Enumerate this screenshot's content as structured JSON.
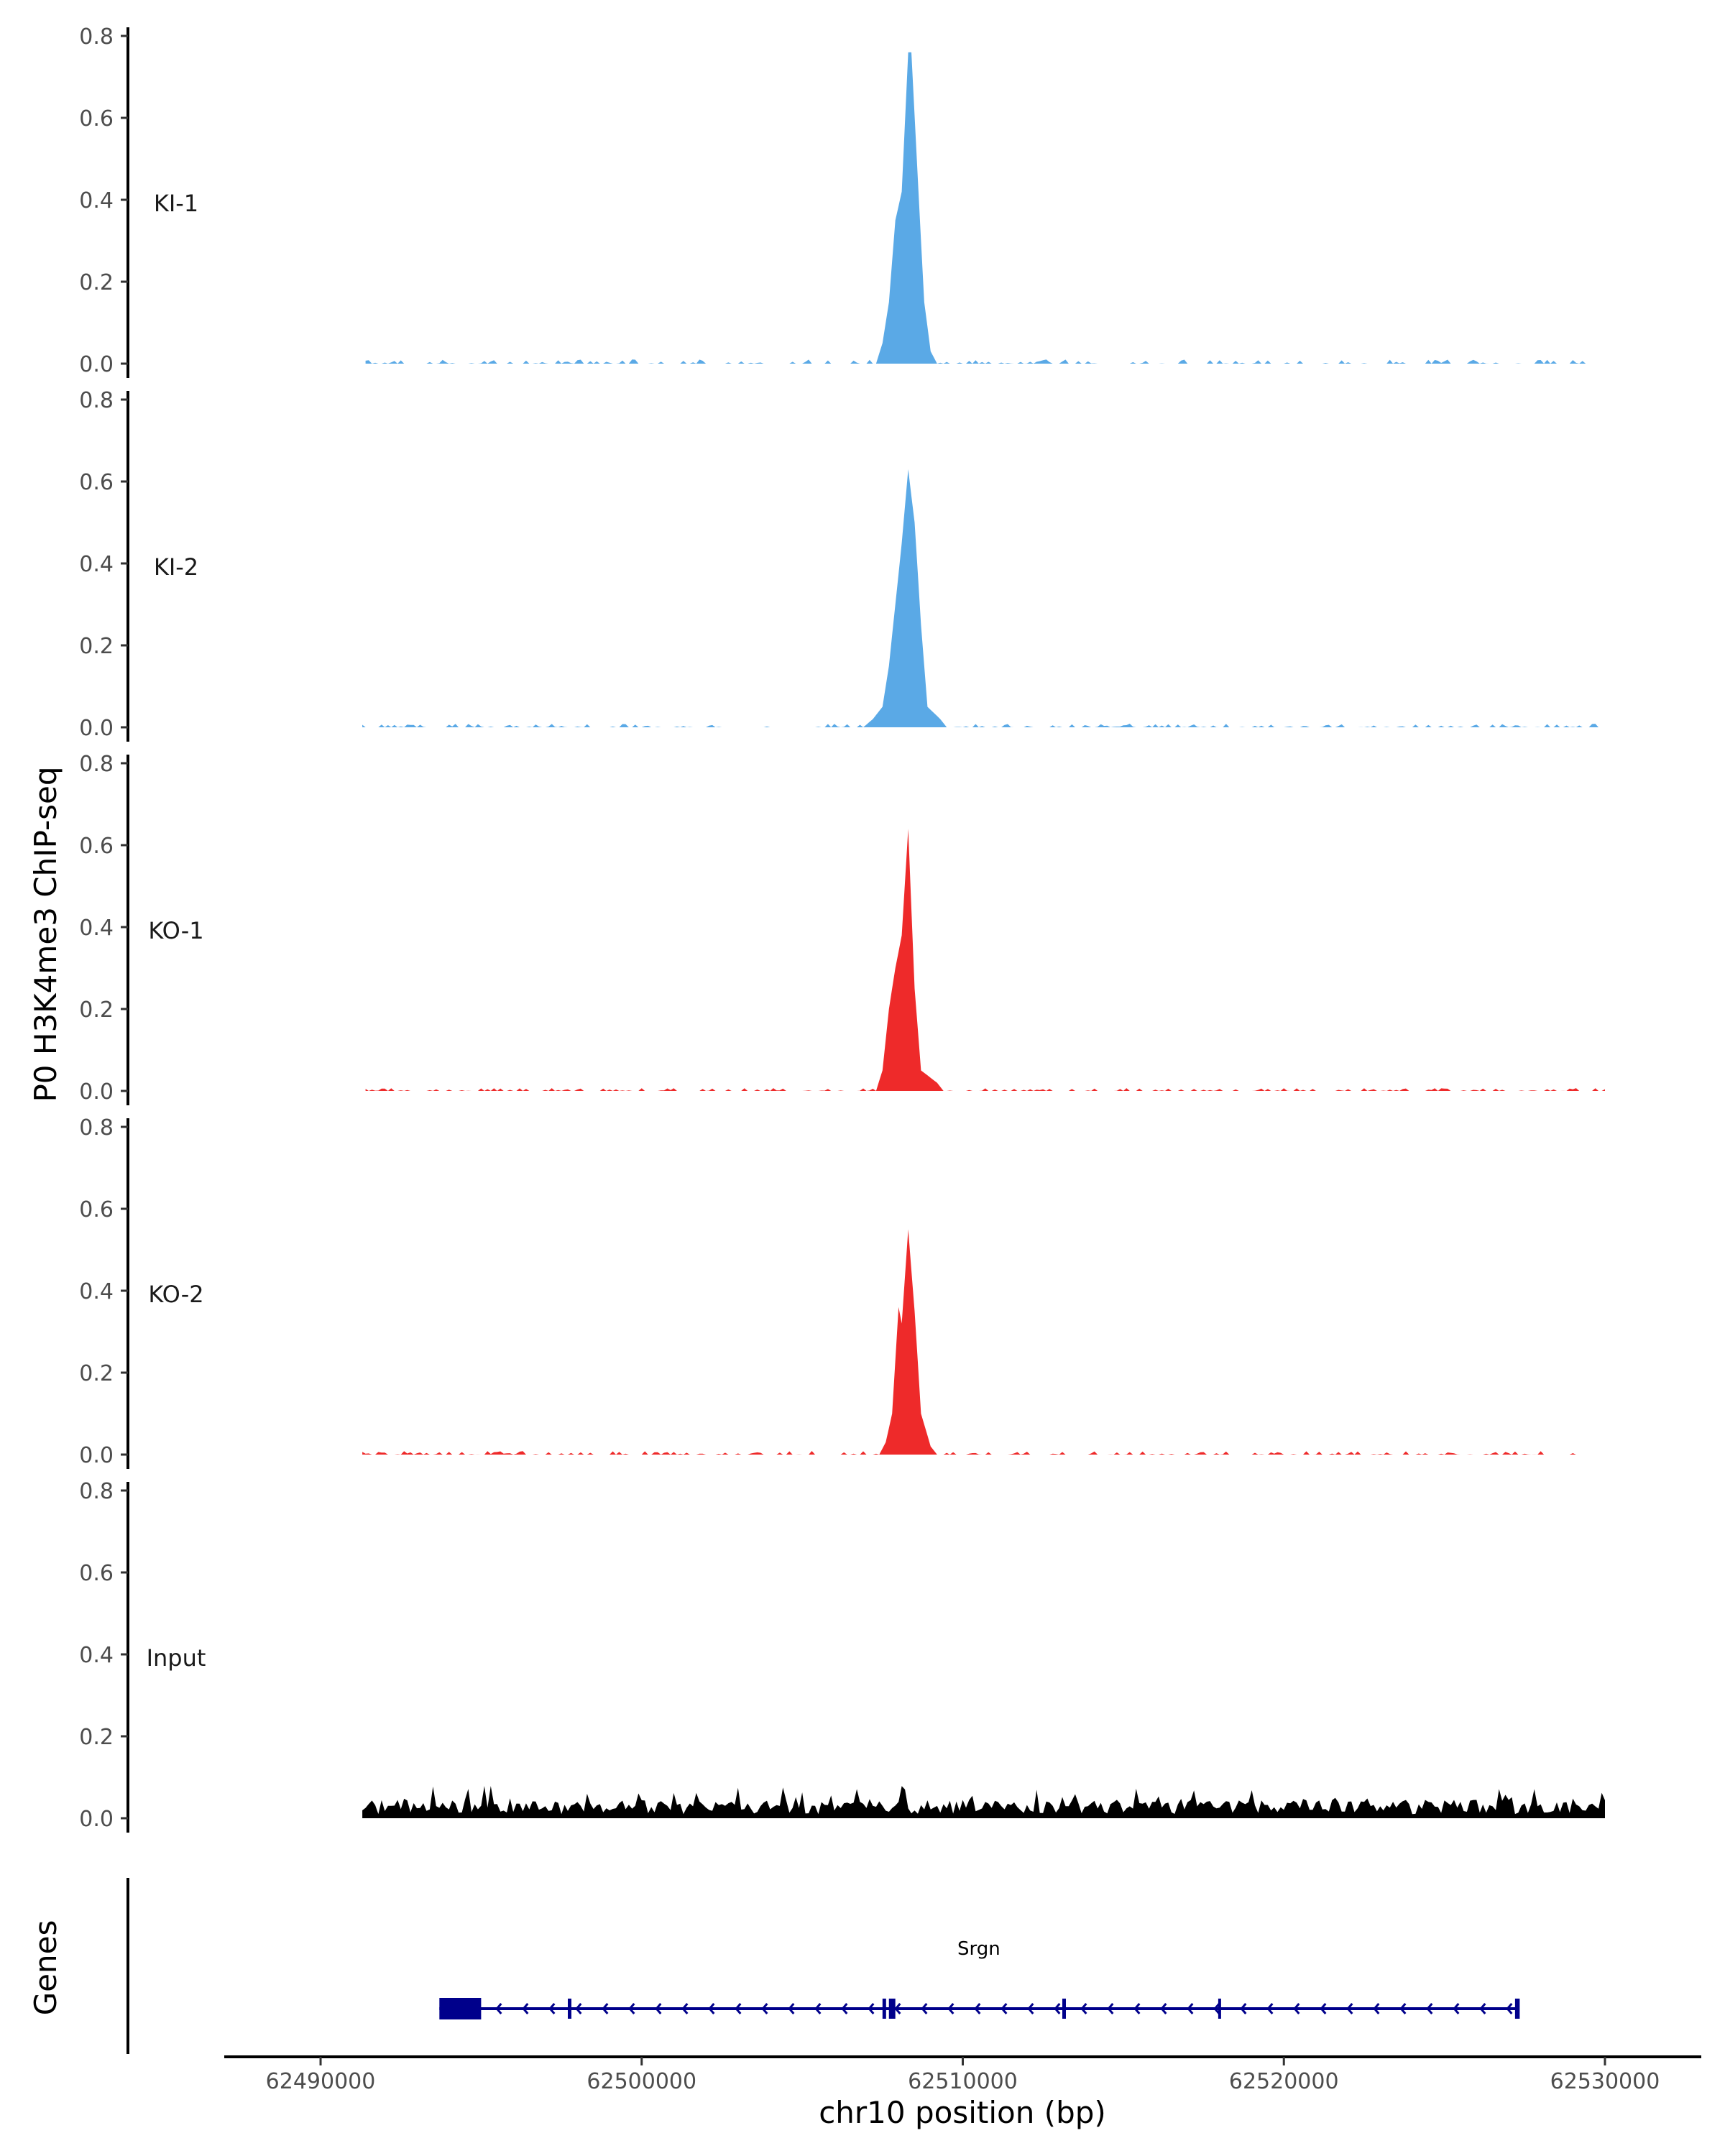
{
  "chart_data": {
    "type": "area",
    "chromosome": "chr10",
    "xlabel": "chr10 position (bp)",
    "ylabel": "P0 H3K4me3 ChIP-seq",
    "xlim": [
      62487000,
      62533000
    ],
    "x_ticks": [
      62490000,
      62500000,
      62510000,
      62520000,
      62530000
    ],
    "x_tick_labels": [
      "62490000",
      "62500000",
      "62510000",
      "62520000",
      "62530000"
    ],
    "ylim": [
      0,
      0.8
    ],
    "y_ticks": [
      0,
      0.2,
      0.4,
      0.6,
      0.8
    ],
    "y_tick_labels": [
      "0.0",
      "0.2",
      "0.4",
      "0.6",
      "0.8"
    ],
    "tracks": [
      {
        "name": "KI-1",
        "color": "#5AA9E6",
        "data_start": 62491400,
        "data_end": 62529500,
        "background": 0.008,
        "bg_variance": 0.03,
        "seed": 11,
        "peak": [
          [
            62507300,
            0
          ],
          [
            62507500,
            0.05
          ],
          [
            62507700,
            0.15
          ],
          [
            62507900,
            0.35
          ],
          [
            62508100,
            0.42
          ],
          [
            62508300,
            0.76
          ],
          [
            62508400,
            0.76
          ],
          [
            62508600,
            0.45
          ],
          [
            62508800,
            0.15
          ],
          [
            62509000,
            0.03
          ],
          [
            62509200,
            0
          ]
        ]
      },
      {
        "name": "KI-2",
        "color": "#5AA9E6",
        "data_start": 62491300,
        "data_end": 62529900,
        "background": 0.008,
        "bg_variance": 0.025,
        "seed": 23,
        "peak": [
          [
            62506900,
            0
          ],
          [
            62507200,
            0.02
          ],
          [
            62507500,
            0.05
          ],
          [
            62507700,
            0.15
          ],
          [
            62507900,
            0.3
          ],
          [
            62508100,
            0.45
          ],
          [
            62508300,
            0.63
          ],
          [
            62508500,
            0.5
          ],
          [
            62508700,
            0.25
          ],
          [
            62508900,
            0.05
          ],
          [
            62509300,
            0.02
          ],
          [
            62509500,
            0
          ]
        ]
      },
      {
        "name": "KO-1",
        "color": "#EE2A2A",
        "data_start": 62491400,
        "data_end": 62530000,
        "background": 0.008,
        "bg_variance": 0.02,
        "seed": 37,
        "peak": [
          [
            62507300,
            0
          ],
          [
            62507500,
            0.05
          ],
          [
            62507700,
            0.2
          ],
          [
            62507900,
            0.3
          ],
          [
            62508100,
            0.38
          ],
          [
            62508300,
            0.64
          ],
          [
            62508500,
            0.25
          ],
          [
            62508700,
            0.05
          ],
          [
            62509200,
            0.02
          ],
          [
            62509400,
            0
          ]
        ]
      },
      {
        "name": "KO-2",
        "color": "#EE2A2A",
        "data_start": 62491300,
        "data_end": 62530000,
        "background": 0.008,
        "bg_variance": 0.025,
        "seed": 53,
        "peak": [
          [
            62507400,
            0
          ],
          [
            62507600,
            0.03
          ],
          [
            62507800,
            0.1
          ],
          [
            62508000,
            0.36
          ],
          [
            62508100,
            0.32
          ],
          [
            62508300,
            0.55
          ],
          [
            62508500,
            0.35
          ],
          [
            62508700,
            0.1
          ],
          [
            62509000,
            0.02
          ],
          [
            62509200,
            0
          ]
        ]
      },
      {
        "name": "Input",
        "color": "#000000",
        "data_start": 62491300,
        "data_end": 62530000,
        "background": 0.025,
        "bg_variance": 0.05,
        "seed": 71,
        "peak": []
      }
    ],
    "genes": [
      {
        "name": "Srgn",
        "start": 62493700,
        "end": 62527300,
        "strand": "-",
        "color": "#00008B",
        "exons": [
          [
            62493700,
            62495000
          ],
          [
            62497700,
            62497800
          ],
          [
            62507500,
            62507600
          ],
          [
            62507700,
            62507900
          ],
          [
            62513100,
            62513200
          ],
          [
            62527200,
            62527300
          ]
        ],
        "introns_boundaries": [
          62518000,
          62527300
        ]
      }
    ],
    "genes_track_label": "Genes"
  }
}
